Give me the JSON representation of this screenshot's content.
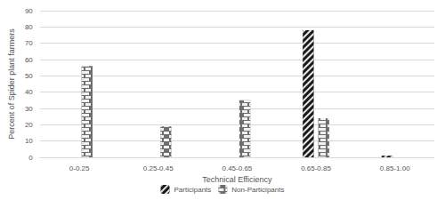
{
  "chart_data": {
    "type": "bar",
    "x_label": "Technical Efficiency",
    "y_label": "Percent of Spider plant farmers",
    "categories": [
      "0-0.25",
      "0.25-0.45",
      "0.45-0.65",
      "0.65-0.85",
      "0.85-1.00"
    ],
    "series": [
      {
        "name": "Participants",
        "color": "#1a1a1a",
        "values": [
          0,
          0,
          0,
          78,
          1
        ]
      },
      {
        "name": "Non-Participants",
        "color": "#6e6e6e",
        "values": [
          56,
          19,
          35,
          24,
          0
        ]
      }
    ],
    "ylim": [
      0,
      90
    ],
    "yticks": [
      0,
      10,
      20,
      30,
      40,
      50,
      60,
      70,
      80,
      90
    ],
    "grid": true,
    "legend": "bottom"
  }
}
